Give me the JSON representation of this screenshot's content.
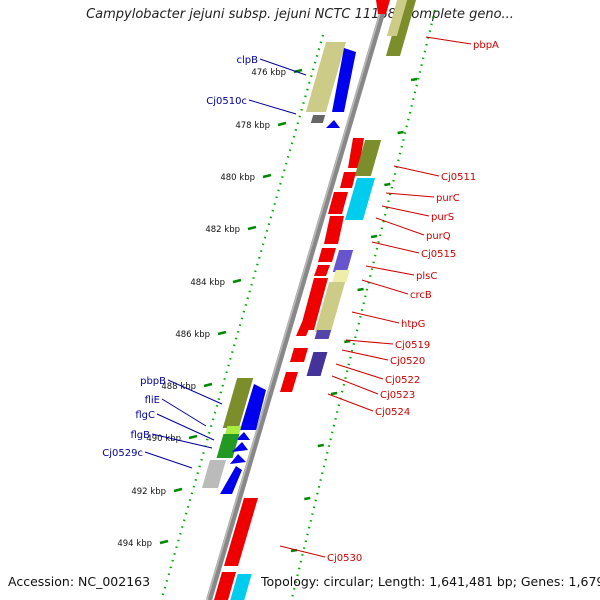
{
  "title": "Campylobacter jejuni subsp. jejuni NCTC 11168, complete geno...",
  "footer": {
    "accession": "Accession: NC_002163",
    "summary": "Topology: circular; Length: 1,641,481 bp; Genes: 1,679"
  },
  "colors": {
    "forward_label": "#cc0000",
    "reverse_label": "#000099",
    "backbone": "#888888",
    "ticks": "#008800"
  },
  "ticks": [
    "476 kbp",
    "478 kbp",
    "480 kbp",
    "482 kbp",
    "484 kbp",
    "486 kbp",
    "488 kbp",
    "490 kbp",
    "492 kbp",
    "494 kbp"
  ],
  "forward_genes": [
    "pbpA",
    "Cj0511",
    "purC",
    "purS",
    "purQ",
    "Cj0515",
    "plsC",
    "crcB",
    "htpG",
    "Cj0519",
    "Cj0520",
    "Cj0522",
    "Cj0523",
    "Cj0524",
    "Cj0530"
  ],
  "reverse_genes": [
    "clpB",
    "Cj0510c",
    "pbpB",
    "fliE",
    "flgC",
    "flgB",
    "Cj0529c"
  ]
}
